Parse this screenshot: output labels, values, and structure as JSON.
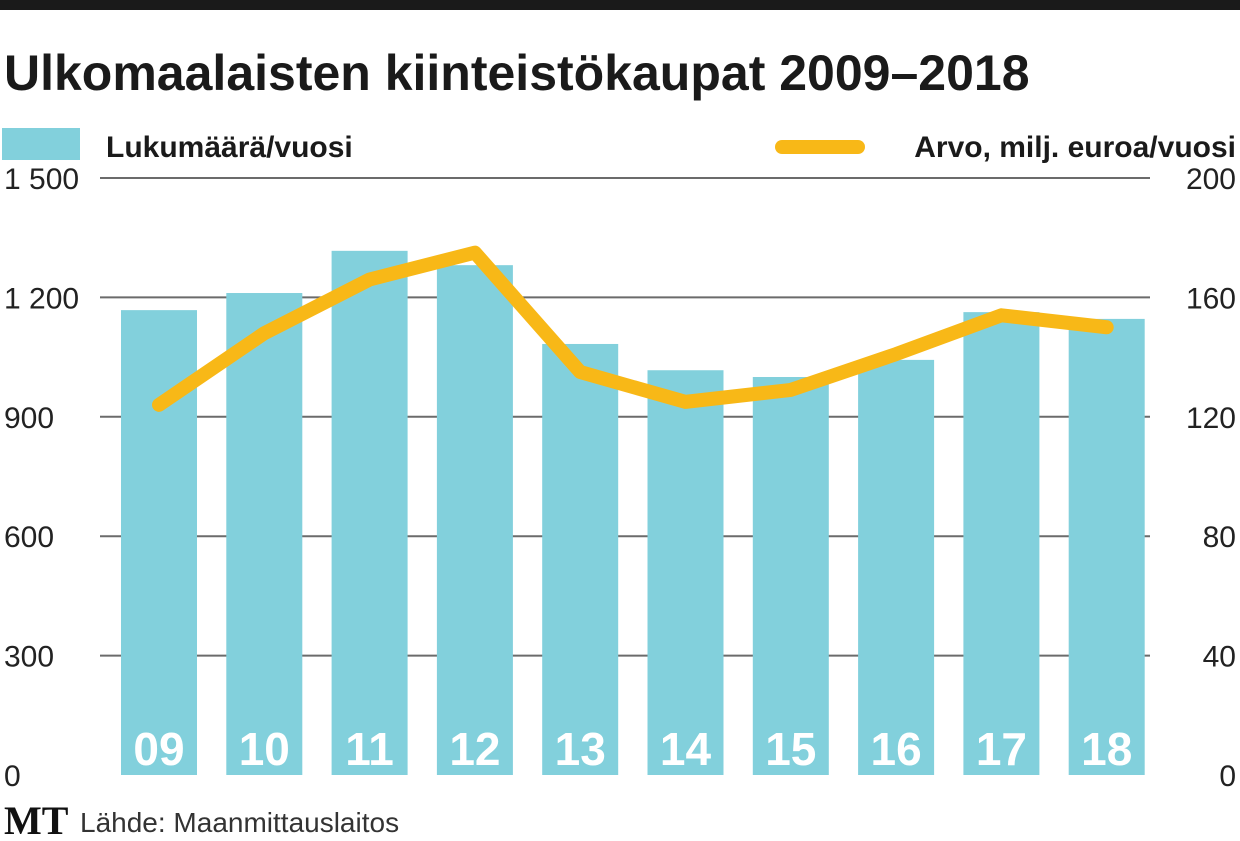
{
  "chart_data": {
    "type": "bar+line",
    "title": "Ulkomaalaisten kiinteistökaupat 2009–2018",
    "categories": [
      "09",
      "10",
      "11",
      "12",
      "13",
      "14",
      "15",
      "16",
      "17",
      "18"
    ],
    "series": [
      {
        "name": "Lukumäärä/vuosi",
        "type": "bar",
        "axis": "left",
        "color": "#82d0dc",
        "values": [
          1168,
          1211,
          1317,
          1281,
          1083,
          1017,
          1000,
          1043,
          1163,
          1146
        ]
      },
      {
        "name": "Arvo, milj. euroa/vuosi",
        "type": "line",
        "axis": "right",
        "color": "#f8b817",
        "values": [
          124,
          148,
          166,
          175,
          135,
          125,
          129,
          141,
          154,
          150
        ]
      }
    ],
    "left_axis": {
      "ylim": [
        0,
        1500
      ],
      "ticks": [
        0,
        300,
        600,
        900,
        1200,
        1500
      ],
      "tick_labels": [
        "0",
        "300",
        "600",
        "900",
        "1 200",
        "1 500"
      ]
    },
    "right_axis": {
      "ylim": [
        0,
        200
      ],
      "ticks": [
        0,
        40,
        80,
        120,
        160,
        200
      ],
      "tick_labels": [
        "0",
        "40",
        "80",
        "120",
        "160",
        "200"
      ]
    },
    "grid": true,
    "legend_placement": "top"
  },
  "footer": {
    "logo": "MT",
    "source": "Lähde: Maanmittauslaitos"
  }
}
